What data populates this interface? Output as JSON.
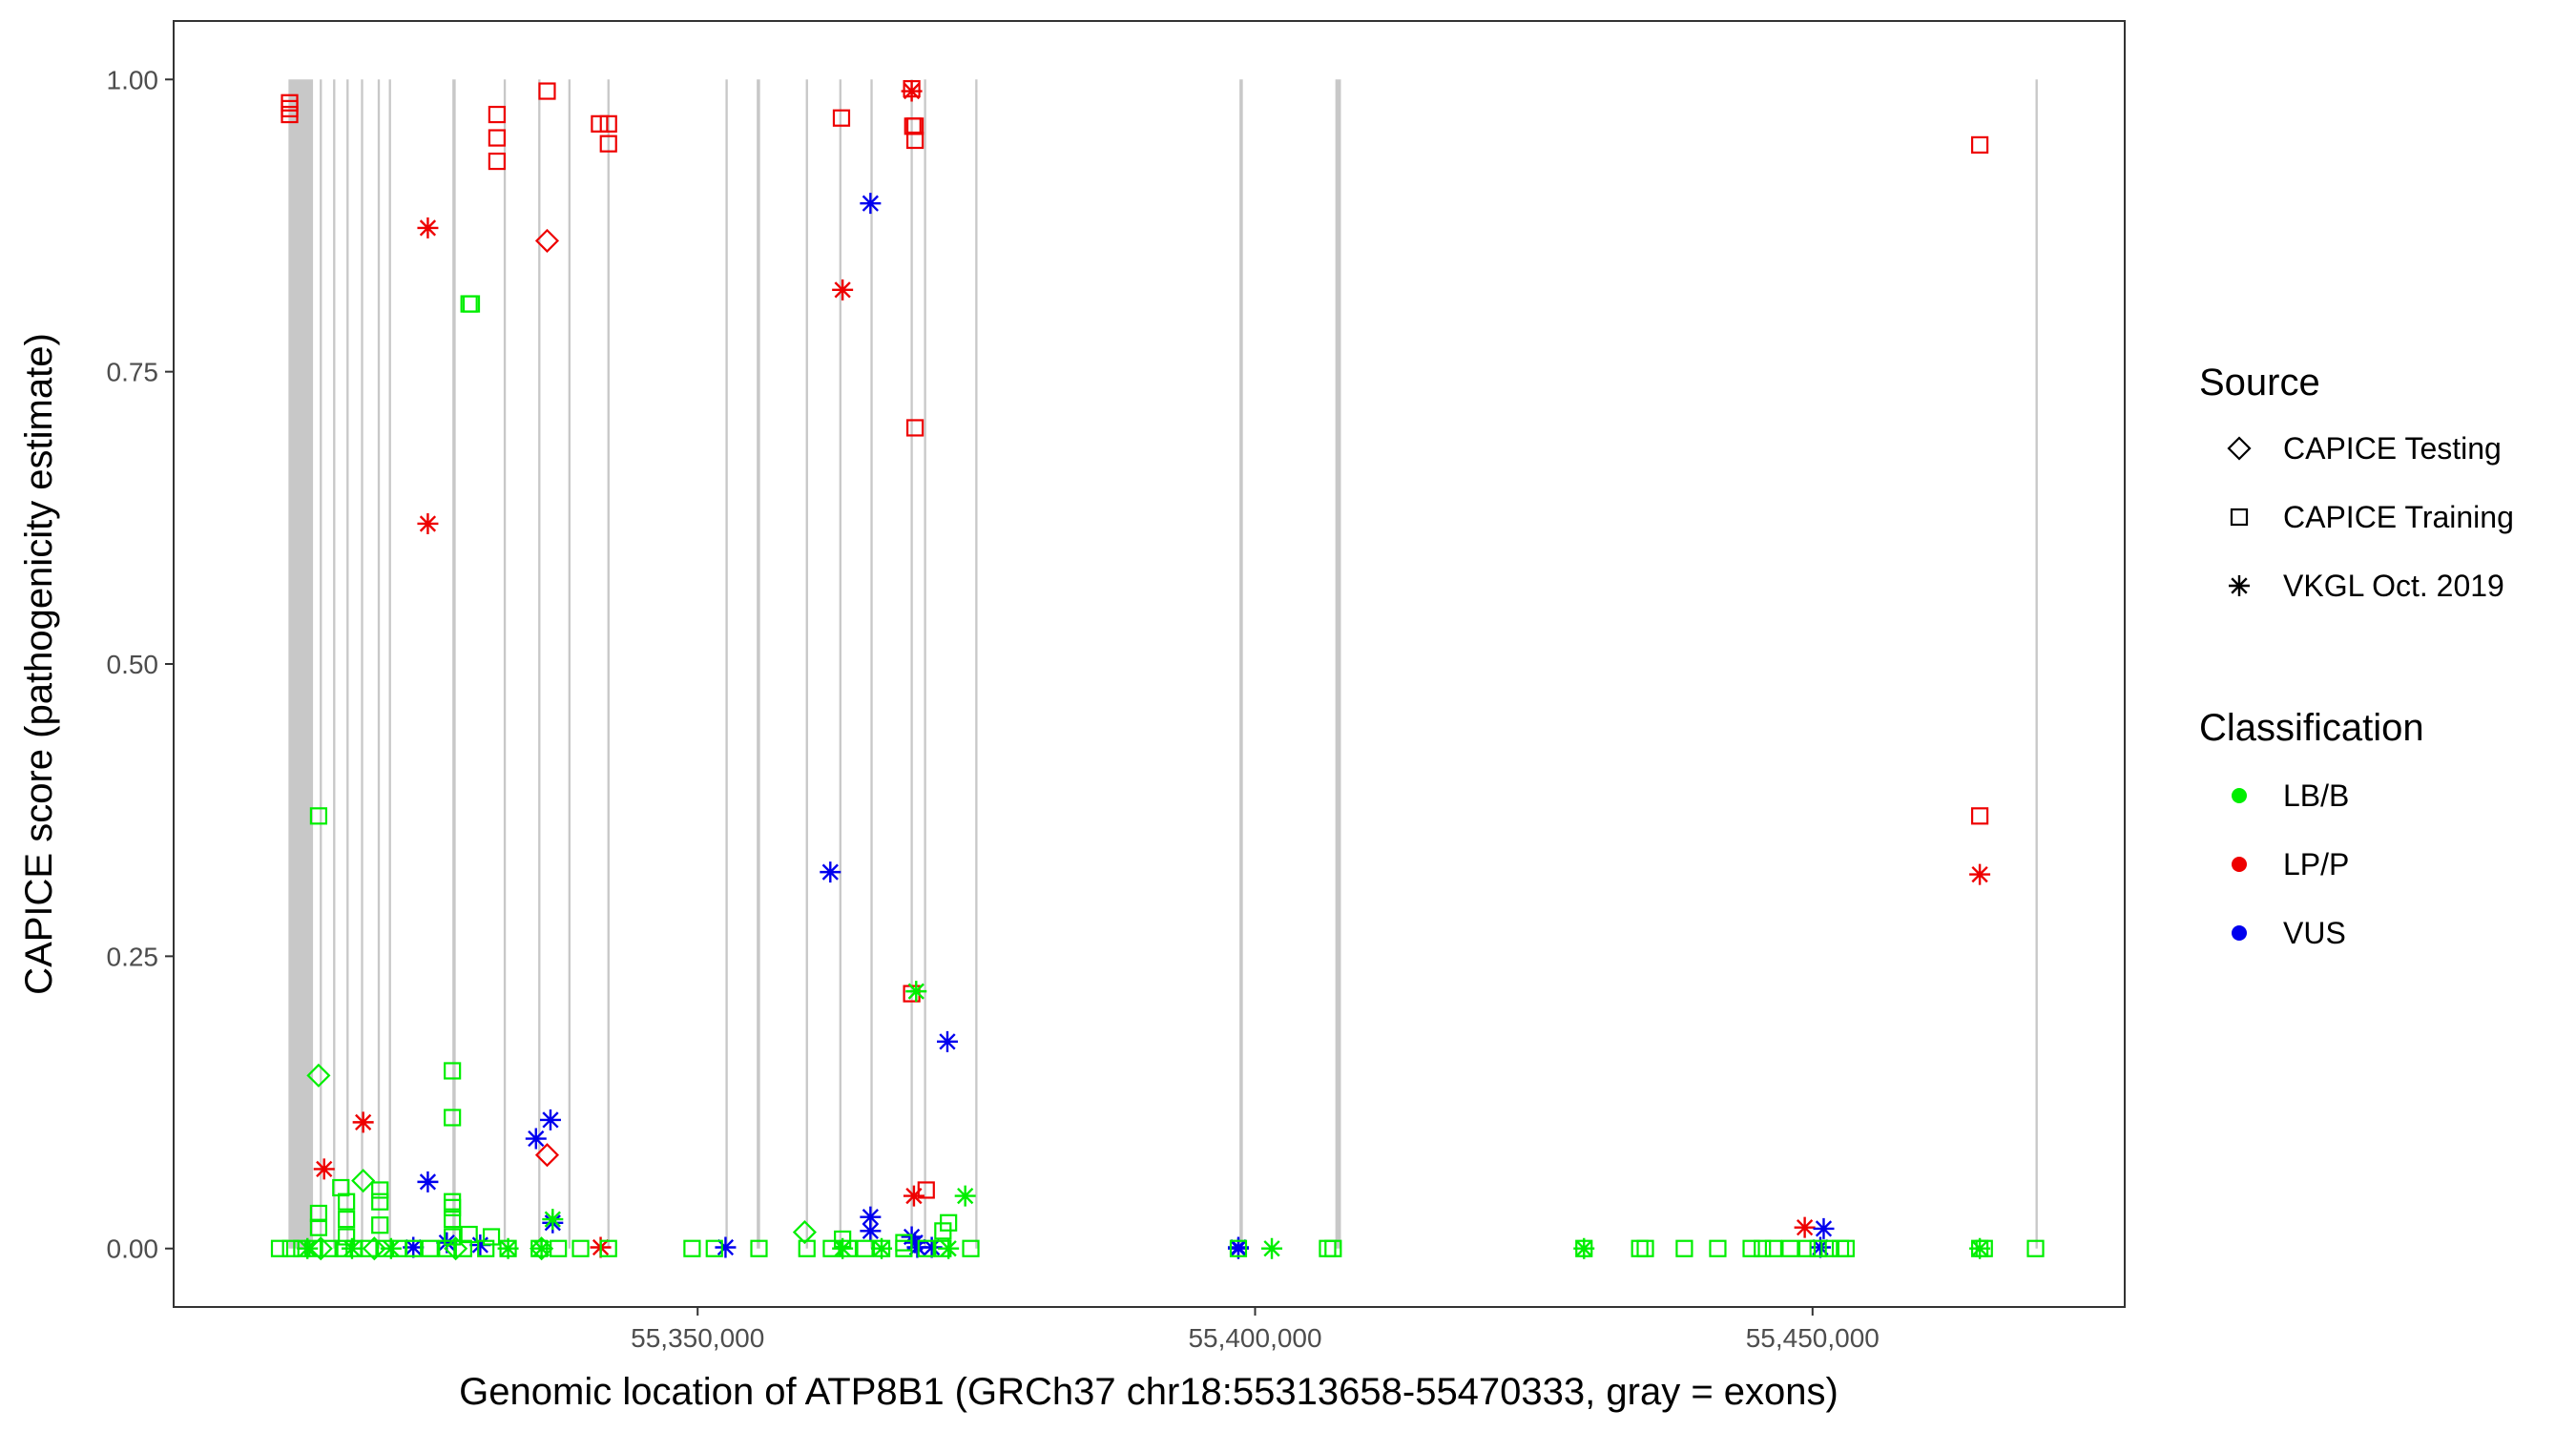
{
  "chart_data": {
    "type": "scatter",
    "xlabel": "Genomic location of ATP8B1 (GRCh37 chr18:55313658-55470333, gray = exons)",
    "ylabel": "CAPICE score (pathogenicity estimate)",
    "xlim": [
      55303000,
      55478000
    ],
    "ylim": [
      -0.05,
      1.05
    ],
    "x_ticks": [
      55350000,
      55400000,
      55450000
    ],
    "x_tick_labels": [
      "55,350,000",
      "55,400,000",
      "55,450,000"
    ],
    "y_ticks": [
      0,
      0.25,
      0.5,
      0.75,
      1.0
    ],
    "y_tick_labels": [
      "0.00",
      "0.25",
      "0.50",
      "0.75",
      "1.00"
    ],
    "grid": false,
    "exons": [
      [
        55313300,
        55315500
      ],
      [
        55316100,
        55316300
      ],
      [
        55317300,
        55317500
      ],
      [
        55318500,
        55318700
      ],
      [
        55319800,
        55320000
      ],
      [
        55321300,
        55321500
      ],
      [
        55322300,
        55322500
      ],
      [
        55328000,
        55328300
      ],
      [
        55332600,
        55332800
      ],
      [
        55335700,
        55335900
      ],
      [
        55338400,
        55338600
      ],
      [
        55341900,
        55342100
      ],
      [
        55352500,
        55352700
      ],
      [
        55355300,
        55355600
      ],
      [
        55359700,
        55359900
      ],
      [
        55362700,
        55362900
      ],
      [
        55365500,
        55365700
      ],
      [
        55369100,
        55369300
      ],
      [
        55370300,
        55370500
      ],
      [
        55374900,
        55375100
      ],
      [
        55398600,
        55398900
      ],
      [
        55407200,
        55407700
      ],
      [
        55470000,
        55470200
      ]
    ],
    "legend": {
      "position": "right",
      "source_title": "Source",
      "source_entries": [
        {
          "label": "CAPICE Testing",
          "shape": "diamond"
        },
        {
          "label": "CAPICE Training",
          "shape": "square"
        },
        {
          "label": "VKGL Oct. 2019",
          "shape": "asterisk"
        }
      ],
      "class_title": "Classification",
      "class_entries": [
        {
          "label": "LB/B",
          "color": "#00ee00"
        },
        {
          "label": "LP/P",
          "color": "#ee0000"
        },
        {
          "label": "VUS",
          "color": "#0000ee"
        }
      ]
    },
    "series": [
      {
        "source": "CAPICE Training",
        "classification": "LP/P",
        "shape": "square",
        "color": "#ee0000",
        "points": [
          [
            55313400,
            0.98
          ],
          [
            55313400,
            0.975
          ],
          [
            55313400,
            0.97
          ],
          [
            55332000,
            0.97
          ],
          [
            55332000,
            0.95
          ],
          [
            55332000,
            0.93
          ],
          [
            55336500,
            0.99
          ],
          [
            55341200,
            0.962
          ],
          [
            55342000,
            0.962
          ],
          [
            55342000,
            0.945
          ],
          [
            55362900,
            0.967
          ],
          [
            55369200,
            0.992
          ],
          [
            55369300,
            0.96
          ],
          [
            55369500,
            0.96
          ],
          [
            55369500,
            0.948
          ],
          [
            55369500,
            0.702
          ],
          [
            55369200,
            0.218
          ],
          [
            55370500,
            0.05
          ],
          [
            55465000,
            0.944
          ],
          [
            55465000,
            0.37
          ]
        ]
      },
      {
        "source": "VKGL Oct. 2019",
        "classification": "LP/P",
        "shape": "asterisk",
        "color": "#ee0000",
        "points": [
          [
            55325800,
            0.873
          ],
          [
            55325800,
            0.62
          ],
          [
            55363000,
            0.82
          ],
          [
            55369200,
            0.99
          ],
          [
            55320000,
            0.108
          ],
          [
            55316500,
            0.068
          ],
          [
            55369400,
            0.045
          ],
          [
            55341300,
            0.001
          ],
          [
            55449300,
            0.018
          ],
          [
            55465000,
            0.32
          ]
        ]
      },
      {
        "source": "CAPICE Testing",
        "classification": "LP/P",
        "shape": "diamond",
        "color": "#ee0000",
        "points": [
          [
            55336500,
            0.862
          ],
          [
            55336500,
            0.08
          ]
        ]
      },
      {
        "source": "VKGL Oct. 2019",
        "classification": "VUS",
        "shape": "asterisk",
        "color": "#0000ee",
        "points": [
          [
            55365500,
            0.894
          ],
          [
            55361900,
            0.322
          ],
          [
            55372400,
            0.177
          ],
          [
            55336800,
            0.11
          ],
          [
            55335500,
            0.094
          ],
          [
            55325800,
            0.057
          ],
          [
            55365500,
            0.027
          ],
          [
            55337000,
            0.022
          ],
          [
            55365500,
            0.015
          ],
          [
            55369200,
            0.01
          ],
          [
            55369500,
            0.005
          ],
          [
            55327500,
            0.005
          ],
          [
            55330500,
            0.003
          ],
          [
            55324500,
            0.001
          ],
          [
            55352500,
            0.001
          ],
          [
            55369700,
            0.001
          ],
          [
            55371000,
            0.001
          ],
          [
            55398500,
            0.001
          ],
          [
            55398500,
            0.0
          ],
          [
            55451000,
            0.017
          ],
          [
            55450700,
            0.001
          ]
        ]
      },
      {
        "source": "CAPICE Training",
        "classification": "LB/B",
        "shape": "square",
        "color": "#00ee00",
        "points": [
          [
            55329500,
            0.808
          ],
          [
            55329700,
            0.808
          ],
          [
            55316000,
            0.37
          ],
          [
            55328000,
            0.152
          ],
          [
            55328000,
            0.112
          ],
          [
            55318000,
            0.052
          ],
          [
            55321500,
            0.05
          ],
          [
            55318500,
            0.04
          ],
          [
            55321500,
            0.04
          ],
          [
            55328000,
            0.04
          ],
          [
            55328000,
            0.035
          ],
          [
            55316000,
            0.03
          ],
          [
            55318500,
            0.025
          ],
          [
            55328000,
            0.025
          ],
          [
            55321500,
            0.02
          ],
          [
            55316000,
            0.018
          ],
          [
            55329500,
            0.012
          ],
          [
            55331500,
            0.01
          ],
          [
            55318500,
            0.01
          ],
          [
            55328000,
            0.01
          ],
          [
            55363000,
            0.008
          ],
          [
            55372500,
            0.022
          ],
          [
            55372000,
            0.015
          ],
          [
            55368500,
            0.005
          ],
          [
            55312500,
            0.0
          ],
          [
            55313500,
            0.0
          ],
          [
            55314500,
            0.0
          ],
          [
            55315500,
            0.0
          ],
          [
            55317000,
            0.0
          ],
          [
            55318200,
            0.0
          ],
          [
            55319200,
            0.0
          ],
          [
            55320500,
            0.0
          ],
          [
            55322000,
            0.0
          ],
          [
            55323200,
            0.0
          ],
          [
            55324500,
            0.0
          ],
          [
            55326000,
            0.0
          ],
          [
            55327500,
            0.0
          ],
          [
            55329000,
            0.0
          ],
          [
            55331000,
            0.0
          ],
          [
            55333000,
            0.0
          ],
          [
            55335800,
            0.0
          ],
          [
            55337500,
            0.0
          ],
          [
            55339500,
            0.0
          ],
          [
            55342000,
            0.0
          ],
          [
            55349500,
            0.0
          ],
          [
            55351500,
            0.0
          ],
          [
            55355500,
            0.0
          ],
          [
            55359800,
            0.0
          ],
          [
            55362000,
            0.0
          ],
          [
            55363500,
            0.0
          ],
          [
            55365000,
            0.0
          ],
          [
            55366500,
            0.0
          ],
          [
            55368500,
            0.0
          ],
          [
            55370500,
            0.0
          ],
          [
            55372000,
            0.0
          ],
          [
            55374500,
            0.0
          ],
          [
            55398500,
            0.0
          ],
          [
            55406500,
            0.0
          ],
          [
            55407000,
            0.0
          ],
          [
            55429500,
            0.0
          ],
          [
            55434500,
            0.0
          ],
          [
            55435000,
            0.0
          ],
          [
            55438500,
            0.0
          ],
          [
            55441500,
            0.0
          ],
          [
            55444500,
            0.0
          ],
          [
            55445500,
            0.0
          ],
          [
            55446500,
            0.0
          ],
          [
            55448000,
            0.0
          ],
          [
            55449500,
            0.0
          ],
          [
            55450500,
            0.0
          ],
          [
            55451500,
            0.0
          ],
          [
            55452500,
            0.0
          ],
          [
            55453000,
            0.0
          ],
          [
            55465000,
            0.0
          ],
          [
            55465400,
            0.0
          ],
          [
            55470000,
            0.0
          ]
        ]
      },
      {
        "source": "CAPICE Testing",
        "classification": "LB/B",
        "shape": "diamond",
        "color": "#00ee00",
        "points": [
          [
            55316000,
            0.148
          ],
          [
            55320000,
            0.058
          ],
          [
            55359600,
            0.014
          ],
          [
            55316200,
            0.0
          ],
          [
            55321000,
            0.0
          ],
          [
            55328300,
            0.0
          ],
          [
            55336000,
            0.0
          ]
        ]
      },
      {
        "source": "VKGL Oct. 2019",
        "classification": "LB/B",
        "shape": "asterisk",
        "color": "#00ee00",
        "points": [
          [
            55369600,
            0.22
          ],
          [
            55374000,
            0.045
          ],
          [
            55337000,
            0.025
          ],
          [
            55372500,
            0.0
          ],
          [
            55315000,
            0.0
          ],
          [
            55319000,
            0.0
          ],
          [
            55322500,
            0.0
          ],
          [
            55333000,
            0.0
          ],
          [
            55336000,
            0.0
          ],
          [
            55363000,
            0.0
          ],
          [
            55366500,
            0.0
          ],
          [
            55401500,
            0.0
          ],
          [
            55429500,
            0.0
          ],
          [
            55465000,
            0.0
          ]
        ]
      }
    ]
  }
}
